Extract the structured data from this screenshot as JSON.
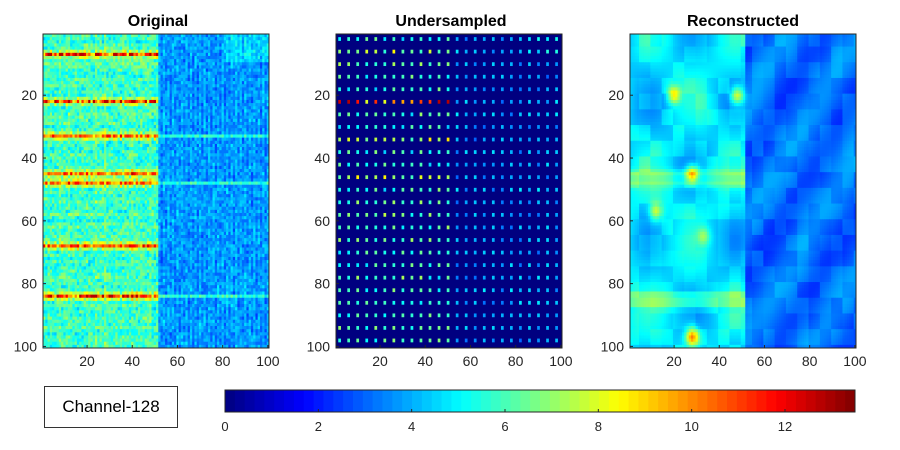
{
  "annotation": {
    "text": "Channel-128"
  },
  "chart_data": [
    {
      "type": "heatmap",
      "title": "Original",
      "xlim": [
        1,
        100
      ],
      "ylim": [
        1,
        100
      ],
      "y_reversed": true,
      "xticks": [
        20,
        40,
        60,
        80,
        100
      ],
      "yticks": [
        20,
        40,
        60,
        80,
        100
      ],
      "grid": false,
      "notes": "left half (x<52) high values ~4-8 with bright horizontal bands near y=7,22,33,45,48,68,84; right half low ~2-4"
    },
    {
      "type": "heatmap",
      "title": "Undersampled",
      "xlim": [
        1,
        100
      ],
      "ylim": [
        1,
        100
      ],
      "y_reversed": true,
      "xticks": [
        20,
        40,
        60,
        80,
        100
      ],
      "yticks": [
        20,
        40,
        60,
        80,
        100
      ],
      "grid": false,
      "sampling_step": 4,
      "notes": "background 0; sparse sample points on a regular grid with values ~3-8"
    },
    {
      "type": "heatmap",
      "title": "Reconstructed",
      "xlim": [
        1,
        100
      ],
      "ylim": [
        1,
        100
      ],
      "y_reversed": true,
      "xticks": [
        20,
        40,
        60,
        80,
        100
      ],
      "yticks": [
        20,
        40,
        60,
        80,
        100
      ],
      "grid": false,
      "notes": "smoothed version of original; left half ~4-6, right half ~2-4, hot spots near (20,20),(48,20),(28,45),(12,57),(28,97)"
    }
  ],
  "colorbar": {
    "colormap": "jet",
    "range": [
      0,
      13.5
    ],
    "ticks": [
      0,
      2,
      4,
      6,
      8,
      10,
      12
    ],
    "labels": [
      "0",
      "2",
      "4",
      "6",
      "8",
      "10",
      "12"
    ],
    "steps": 64
  }
}
